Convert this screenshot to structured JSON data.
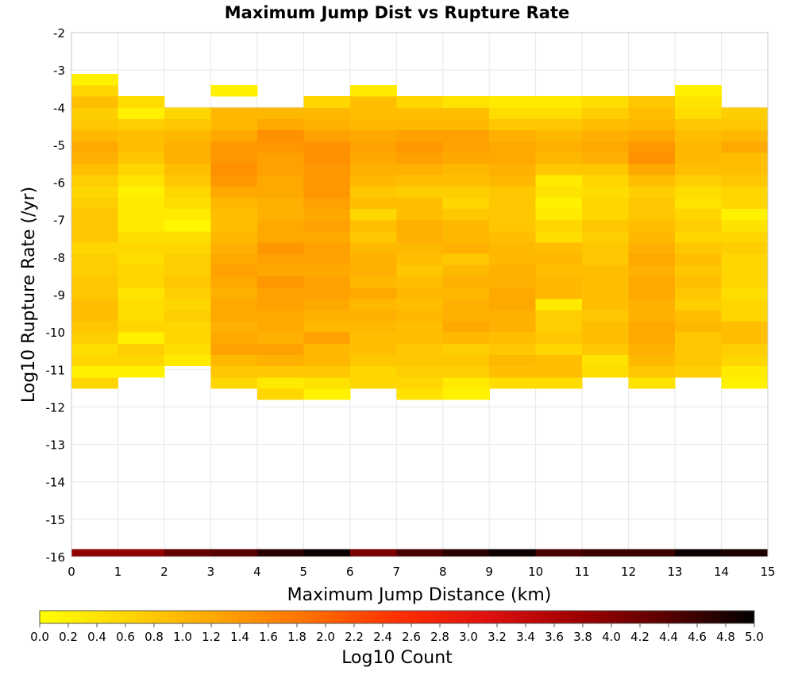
{
  "chart_data": {
    "type": "heatmap",
    "title": "Maximum Jump Dist vs Rupture Rate",
    "xlabel": "Maximum Jump Distance (km)",
    "ylabel": "Log10 Rupture Rate (/yr)",
    "xlim": [
      0,
      15
    ],
    "ylim": [
      -16,
      -2
    ],
    "x_ticks": [
      "0",
      "1",
      "2",
      "3",
      "4",
      "5",
      "6",
      "7",
      "8",
      "9",
      "10",
      "11",
      "12",
      "13",
      "14",
      "15"
    ],
    "y_ticks": [
      "-2",
      "-3",
      "-4",
      "-5",
      "-6",
      "-7",
      "-8",
      "-9",
      "-10",
      "-11",
      "-12",
      "-13",
      "-14",
      "-15",
      "-16"
    ],
    "grid": true,
    "x_bin_width": 1,
    "y_bin_height": 0.3,
    "colorbar": {
      "label": "Log10 Count",
      "min": 0.0,
      "max": 5.0,
      "ticks": [
        "0.0",
        "0.2",
        "0.4",
        "0.6",
        "0.8",
        "1.0",
        "1.2",
        "1.4",
        "1.6",
        "1.8",
        "2.0",
        "2.2",
        "2.4",
        "2.6",
        "2.8",
        "3.0",
        "3.2",
        "3.4",
        "3.6",
        "3.8",
        "4.0",
        "4.2",
        "4.4",
        "4.6",
        "4.8",
        "5.0"
      ],
      "colors": [
        "#ffff00",
        "#ffd400",
        "#ffa500",
        "#ff7000",
        "#ff3000",
        "#e01010",
        "#a00000",
        "#5a0000",
        "#000000"
      ]
    },
    "y_bin_starts": [
      -16.0,
      -11.8,
      -11.5,
      -11.2,
      -10.9,
      -10.6,
      -10.3,
      -10.0,
      -9.7,
      -9.4,
      -9.1,
      -8.8,
      -8.5,
      -8.2,
      -7.9,
      -7.6,
      -7.3,
      -7.0,
      -6.7,
      -6.4,
      -6.1,
      -5.8,
      -5.5,
      -5.2,
      -4.9,
      -4.6,
      -4.3,
      -4.0,
      -3.7,
      -3.4
    ],
    "values": [
      [
        3.9,
        null,
        0.6,
        0.2,
        0.6,
        0.5,
        0.7,
        0.8,
        0.9,
        0.9,
        0.8,
        0.8,
        0.7,
        0.7,
        0.6,
        0.8,
        0.8,
        0.8,
        0.7,
        0.6,
        0.7,
        0.9,
        1.1,
        1.2,
        1.0,
        0.8,
        0.7,
        0.9,
        0.6,
        0.2
      ],
      [
        3.9,
        null,
        null,
        0.2,
        0.6,
        0.7,
        0.2,
        0.6,
        0.5,
        0.5,
        0.4,
        0.6,
        0.6,
        0.5,
        0.6,
        0.5,
        0.3,
        0.3,
        0.3,
        0.2,
        0.4,
        0.6,
        0.8,
        0.9,
        0.9,
        0.7,
        0.2,
        0.5,
        null,
        null
      ],
      [
        4.3,
        null,
        null,
        null,
        0.3,
        0.5,
        0.6,
        0.6,
        0.7,
        0.6,
        0.7,
        0.8,
        0.7,
        0.7,
        0.6,
        0.5,
        0.1,
        0.3,
        0.5,
        0.6,
        0.8,
        0.9,
        1.1,
        1.1,
        1.0,
        0.8,
        0.6,
        null,
        null,
        null
      ],
      [
        4.4,
        null,
        0.6,
        0.8,
        1.0,
        1.3,
        1.2,
        1.1,
        1.2,
        1.2,
        1.1,
        1.2,
        1.3,
        1.2,
        1.1,
        1.0,
        0.9,
        0.9,
        1.0,
        1.2,
        1.4,
        1.5,
        1.4,
        1.4,
        1.2,
        1.0,
        1.0,
        null,
        0.2,
        null
      ],
      [
        4.7,
        0.6,
        0.3,
        0.8,
        1.1,
        1.3,
        1.1,
        1.2,
        1.2,
        1.3,
        1.3,
        1.4,
        1.2,
        1.3,
        1.4,
        1.2,
        1.2,
        1.1,
        1.1,
        1.2,
        1.2,
        1.3,
        1.3,
        1.4,
        1.5,
        1.2,
        1.0,
        null,
        null,
        null
      ],
      [
        4.9,
        0.2,
        0.4,
        0.8,
        1.0,
        1.0,
        1.3,
        1.0,
        1.1,
        1.2,
        1.3,
        1.3,
        1.2,
        1.3,
        1.3,
        1.2,
        1.3,
        1.2,
        1.3,
        1.4,
        1.4,
        1.4,
        1.5,
        1.5,
        1.3,
        1.1,
        1.0,
        0.6,
        null,
        null
      ],
      [
        4.1,
        null,
        0.6,
        0.6,
        0.8,
        0.9,
        0.9,
        1.0,
        1.1,
        1.0,
        1.2,
        1.0,
        1.1,
        1.1,
        1.0,
        0.8,
        0.9,
        0.6,
        0.9,
        0.8,
        1.0,
        1.1,
        1.2,
        1.3,
        1.2,
        1.0,
        0.9,
        0.9,
        0.3,
        null
      ],
      [
        4.5,
        0.4,
        0.6,
        0.7,
        0.8,
        0.8,
        0.9,
        0.9,
        1.0,
        0.9,
        1.0,
        0.9,
        0.8,
        0.9,
        1.0,
        1.1,
        1.1,
        0.9,
        0.9,
        0.7,
        0.9,
        1.1,
        1.3,
        1.4,
        1.3,
        1.0,
        0.9,
        0.6,
        null,
        null
      ],
      [
        4.7,
        0.2,
        0.3,
        0.7,
        0.8,
        0.7,
        1.0,
        1.2,
        1.1,
        1.1,
        1.0,
        1.1,
        1.0,
        0.8,
        1.1,
        1.0,
        1.0,
        0.8,
        0.6,
        0.7,
        0.9,
        1.0,
        1.2,
        1.3,
        1.3,
        1.0,
        0.9,
        0.4,
        null,
        null
      ],
      [
        4.9,
        null,
        0.5,
        0.9,
        1.0,
        0.8,
        0.9,
        1.1,
        1.1,
        1.2,
        1.2,
        1.1,
        1.1,
        1.0,
        1.0,
        0.9,
        0.8,
        0.8,
        0.8,
        0.8,
        1.0,
        1.1,
        1.2,
        1.2,
        1.1,
        0.8,
        0.5,
        0.3,
        null,
        null
      ],
      [
        4.5,
        null,
        0.5,
        0.9,
        0.9,
        0.6,
        0.8,
        0.7,
        0.7,
        0.3,
        1.0,
        1.0,
        0.9,
        1.0,
        0.9,
        0.5,
        0.6,
        0.3,
        0.2,
        0.4,
        0.3,
        0.8,
        1.0,
        1.1,
        1.0,
        0.8,
        0.5,
        0.3,
        null,
        null
      ],
      [
        4.6,
        null,
        null,
        0.5,
        0.4,
        0.8,
        0.9,
        0.9,
        0.8,
        0.9,
        0.9,
        0.9,
        0.9,
        0.8,
        0.8,
        0.7,
        0.8,
        0.6,
        0.6,
        0.5,
        0.6,
        0.8,
        1.1,
        1.2,
        1.1,
        0.9,
        0.7,
        0.5,
        null,
        null
      ],
      [
        4.6,
        null,
        0.4,
        0.8,
        1.0,
        1.1,
        1.2,
        1.2,
        1.1,
        1.1,
        1.2,
        1.2,
        1.1,
        1.2,
        1.1,
        1.0,
        0.9,
        0.8,
        0.8,
        0.7,
        0.9,
        1.2,
        1.5,
        1.4,
        1.2,
        1.0,
        0.9,
        0.8,
        null,
        null
      ],
      [
        4.9,
        null,
        null,
        0.7,
        0.8,
        0.8,
        0.8,
        1.0,
        0.9,
        0.7,
        0.8,
        0.9,
        0.8,
        0.9,
        0.8,
        0.6,
        0.7,
        0.6,
        0.4,
        0.5,
        0.7,
        0.9,
        1.0,
        1.0,
        0.9,
        0.8,
        0.5,
        0.4,
        0.2,
        null
      ],
      [
        4.8,
        null,
        0.2,
        0.3,
        0.6,
        0.7,
        0.9,
        0.9,
        0.6,
        0.6,
        0.5,
        0.6,
        0.6,
        0.6,
        0.7,
        0.6,
        0.4,
        0.2,
        0.6,
        0.6,
        0.8,
        0.9,
        0.9,
        1.2,
        1.0,
        0.8,
        0.7,
        null,
        null,
        null
      ]
    ]
  }
}
